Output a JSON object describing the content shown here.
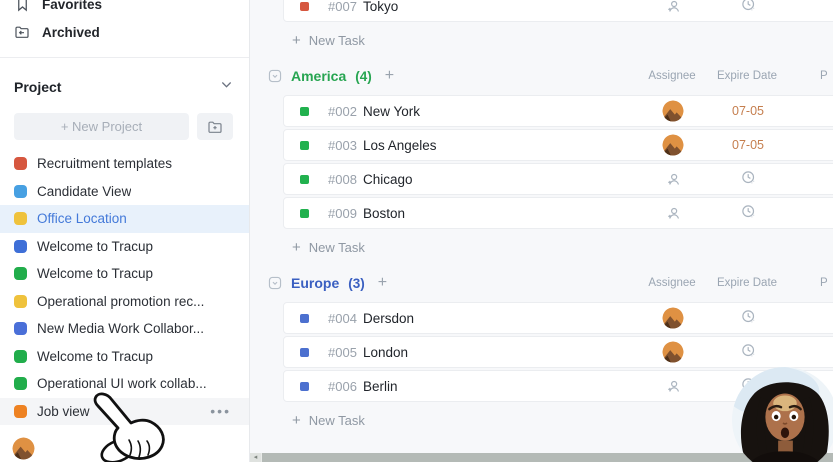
{
  "colors": {
    "green_group": "#27a551",
    "blue_group": "#3a5fc1",
    "selected_item_bg": "#e8f1fb",
    "selected_item_text": "#4379d9",
    "date_text": "#c57e4e"
  },
  "sidebar": {
    "favorites_label": "Favorites",
    "archived_label": "Archived",
    "project_label": "Project",
    "new_project_label": "+ New Project",
    "projects": [
      {
        "label": "Recruitment templates",
        "color": "#d6573f",
        "state": "normal"
      },
      {
        "label": "Candidate View",
        "color": "#47a0e2",
        "state": "normal"
      },
      {
        "label": "Office Location",
        "color": "#efc23c",
        "state": "selected"
      },
      {
        "label": "Welcome to Tracup",
        "color": "#3e6fd7",
        "state": "normal"
      },
      {
        "label": "Welcome to Tracup",
        "color": "#21ad4b",
        "state": "normal"
      },
      {
        "label": "Operational promotion rec...",
        "color": "#efc23c",
        "state": "normal"
      },
      {
        "label": "New Media Work Collabor...",
        "color": "#4a6fd8",
        "state": "normal"
      },
      {
        "label": "Welcome to Tracup",
        "color": "#21ad4b",
        "state": "normal"
      },
      {
        "label": "Operational UI work collab...",
        "color": "#21ad4b",
        "state": "normal"
      },
      {
        "label": "Job view",
        "color": "#ee8222",
        "state": "hovered",
        "more_label": "•••"
      }
    ]
  },
  "main": {
    "new_task_label": "New Task",
    "plus_sign": "+",
    "columns": {
      "assignee": "Assignee",
      "expire_date": "Expire Date",
      "priority_cut": "P"
    },
    "top_task": {
      "id": "#007",
      "title": "Tokyo",
      "bullet_color": "#d6573f",
      "assignee": "none",
      "date": ""
    },
    "groups": [
      {
        "name": "America",
        "count": "(4)",
        "color": "#27a551",
        "tasks": [
          {
            "id": "#002",
            "title": "New York",
            "bullet_color": "#21b14e",
            "assignee": "avatar",
            "date": "07-05"
          },
          {
            "id": "#003",
            "title": "Los Angeles",
            "bullet_color": "#21b14e",
            "assignee": "avatar",
            "date": "07-05"
          },
          {
            "id": "#008",
            "title": "Chicago",
            "bullet_color": "#21b14e",
            "assignee": "none",
            "date": ""
          },
          {
            "id": "#009",
            "title": "Boston",
            "bullet_color": "#21b14e",
            "assignee": "none",
            "date": ""
          }
        ]
      },
      {
        "name": "Europe",
        "count": "(3)",
        "color": "#3a5fc1",
        "tasks": [
          {
            "id": "#004",
            "title": "Dersdon",
            "bullet_color": "#4c70cf",
            "assignee": "avatar",
            "date": ""
          },
          {
            "id": "#005",
            "title": "London",
            "bullet_color": "#4c70cf",
            "assignee": "avatar",
            "date": ""
          },
          {
            "id": "#006",
            "title": "Berlin",
            "bullet_color": "#4c70cf",
            "assignee": "none",
            "date": ""
          }
        ]
      }
    ]
  }
}
